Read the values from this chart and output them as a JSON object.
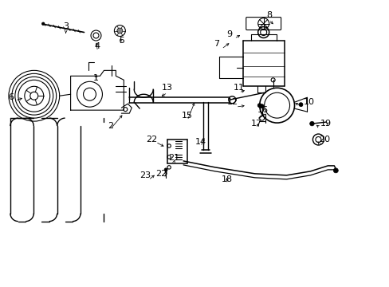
{
  "bg_color": "#ffffff",
  "fig_width": 4.89,
  "fig_height": 3.6,
  "dpi": 100,
  "lc": "#000000",
  "lw": 0.8,
  "label_fs": 8,
  "labels": [
    [
      "3",
      0.82,
      3.28
    ],
    [
      "4",
      1.22,
      3.02
    ],
    [
      "5",
      1.52,
      3.1
    ],
    [
      "1",
      1.2,
      2.62
    ],
    [
      "6",
      0.13,
      2.38
    ],
    [
      "2",
      1.38,
      2.02
    ],
    [
      "13",
      2.1,
      2.5
    ],
    [
      "7",
      2.72,
      3.05
    ],
    [
      "8",
      3.38,
      3.42
    ],
    [
      "9",
      2.88,
      3.18
    ],
    [
      "10",
      3.88,
      2.32
    ],
    [
      "11",
      3.0,
      2.5
    ],
    [
      "12",
      2.92,
      2.32
    ],
    [
      "15",
      2.35,
      2.15
    ],
    [
      "14",
      2.52,
      1.82
    ],
    [
      "16",
      3.3,
      2.22
    ],
    [
      "17",
      3.22,
      2.05
    ],
    [
      "19",
      4.1,
      2.05
    ],
    [
      "20",
      4.08,
      1.85
    ],
    [
      "18",
      2.85,
      1.35
    ],
    [
      "21",
      2.18,
      1.62
    ],
    [
      "22",
      1.9,
      1.85
    ],
    [
      "22",
      2.02,
      1.42
    ],
    [
      "23",
      1.82,
      1.4
    ]
  ]
}
